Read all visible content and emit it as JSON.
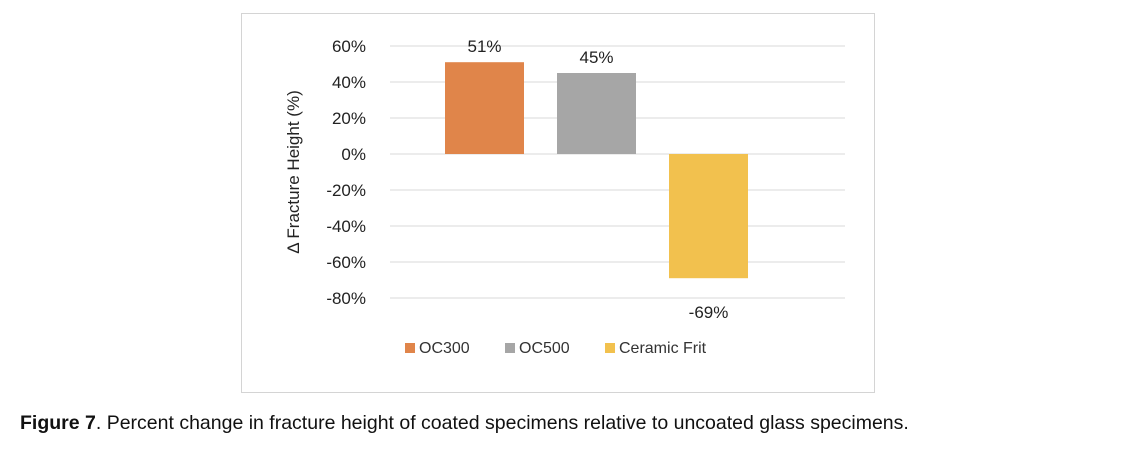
{
  "chart_data": {
    "type": "bar",
    "ylabel": "Δ Fracture Height (%)",
    "xlabel": "",
    "ylim": [
      -80,
      60
    ],
    "yticks": [
      60,
      40,
      20,
      0,
      -20,
      -40,
      -60,
      -80
    ],
    "ytick_labels": [
      "60%",
      "40%",
      "20%",
      "0%",
      "-20%",
      "-40%",
      "-60%",
      "-80%"
    ],
    "grid": true,
    "legend_position": "bottom",
    "series": [
      {
        "name": "OC300",
        "values": [
          51
        ],
        "color": "#E0854A",
        "data_label": "51%"
      },
      {
        "name": "OC500",
        "values": [
          45
        ],
        "color": "#A6A6A6",
        "data_label": "45%"
      },
      {
        "name": "Ceramic Frit",
        "values": [
          -69
        ],
        "color": "#F2C14E",
        "data_label": "-69%"
      }
    ]
  },
  "caption": {
    "label": "Figure 7",
    "text": ". Percent change in fracture height of coated specimens relative to uncoated glass specimens."
  }
}
